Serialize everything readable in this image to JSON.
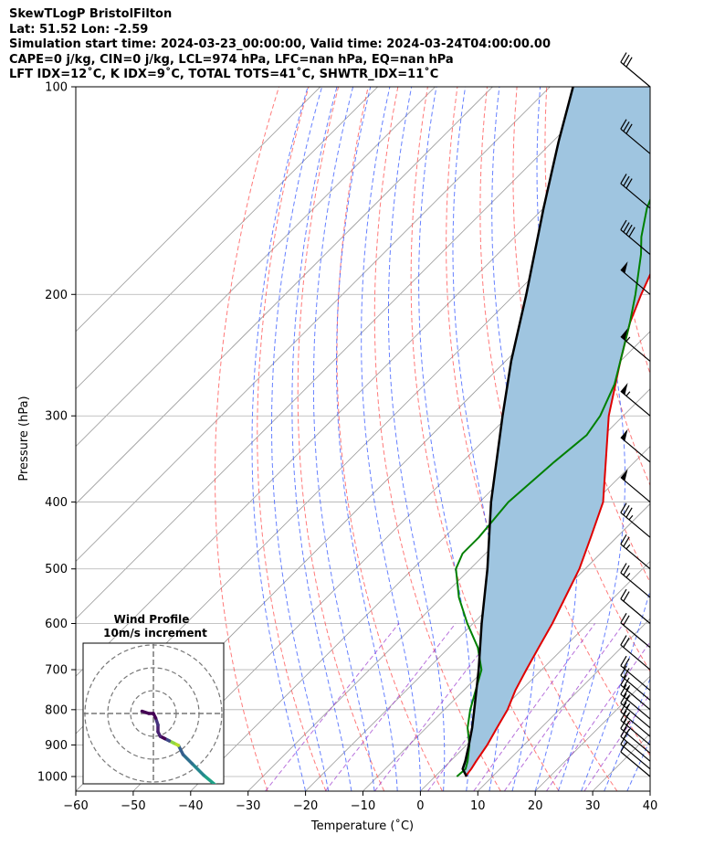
{
  "header": {
    "line1": "SkewTLogP BristolFilton",
    "line2": "Lat: 51.52   Lon: -2.59",
    "line3": "Simulation start time: 2024-03-23_00:00:00, Valid time: 2024-03-24T04:00:00.00",
    "line4": "CAPE=0 j/kg, CIN=0 j/kg, LCL=974 hPa, LFC=nan hPa, EQ=nan hPa",
    "line5": "LFT IDX=12˚C, K IDX=9˚C, TOTAL TOTS=41˚C, SHWTR_IDX=11˚C"
  },
  "colors": {
    "temperature": "#e00000",
    "dewpoint": "#008000",
    "parcel": "#000000",
    "cape_fill": "#9fc5e0",
    "dry_adiabats": "#ff4d4d",
    "moist_adiabats": "#3355ff",
    "mixing_ratio": "#9933cc",
    "isotherms": "#999999",
    "grid": "#b0b0b0"
  },
  "chart_data": {
    "type": "skewT-logP",
    "xlabel": "Temperature (˚C)",
    "ylabel": "Pressure (hPa)",
    "xlim": [
      -60,
      40
    ],
    "ylim": [
      1050,
      100
    ],
    "y_scale": "log",
    "grid": true,
    "x_ticks": [
      "−60",
      "−50",
      "−40",
      "−30",
      "−20",
      "−10",
      "0",
      "10",
      "20",
      "30",
      "40"
    ],
    "y_ticks": [
      "1000",
      "900",
      "800",
      "700",
      "600",
      "500",
      "400",
      "300",
      "200",
      "100"
    ],
    "series": [
      {
        "key": "temperature",
        "points": [
          [
            1000,
            5.3
          ],
          [
            975,
            5
          ],
          [
            950,
            4.5
          ],
          [
            900,
            3.6
          ],
          [
            850,
            2.3
          ],
          [
            800,
            1
          ],
          [
            750,
            -1
          ],
          [
            700,
            -2.7
          ],
          [
            650,
            -4.4
          ],
          [
            600,
            -6.2
          ],
          [
            550,
            -8.5
          ],
          [
            500,
            -11
          ],
          [
            450,
            -14.5
          ],
          [
            400,
            -18.5
          ],
          [
            350,
            -25
          ],
          [
            300,
            -32.5
          ],
          [
            250,
            -40
          ],
          [
            220,
            -45
          ],
          [
            200,
            -48
          ],
          [
            180,
            -51
          ],
          [
            150,
            -55
          ],
          [
            120,
            -59
          ],
          [
            100,
            -62.5
          ]
        ]
      },
      {
        "key": "dewpoint",
        "points": [
          [
            1000,
            3.8
          ],
          [
            975,
            4
          ],
          [
            950,
            3
          ],
          [
            900,
            0.5
          ],
          [
            850,
            -2.8
          ],
          [
            800,
            -5.5
          ],
          [
            700,
            -10.5
          ],
          [
            650,
            -15
          ],
          [
            600,
            -21
          ],
          [
            550,
            -27
          ],
          [
            500,
            -32.5
          ],
          [
            475,
            -34
          ],
          [
            450,
            -34
          ],
          [
            400,
            -35
          ],
          [
            350,
            -34
          ],
          [
            320,
            -33
          ],
          [
            300,
            -34
          ],
          [
            270,
            -37
          ],
          [
            250,
            -40
          ],
          [
            220,
            -45
          ],
          [
            200,
            -49
          ],
          [
            175,
            -55
          ],
          [
            165,
            -58
          ],
          [
            150,
            -62
          ],
          [
            120,
            -69
          ],
          [
            100,
            -74
          ]
        ]
      },
      {
        "key": "parcel",
        "points": [
          [
            1000,
            5.5
          ],
          [
            975,
            3.5
          ],
          [
            950,
            2.6
          ],
          [
            900,
            0.4
          ],
          [
            850,
            -2
          ],
          [
            800,
            -4.8
          ],
          [
            700,
            -11
          ],
          [
            600,
            -18.5
          ],
          [
            500,
            -27
          ],
          [
            400,
            -38
          ],
          [
            300,
            -51
          ],
          [
            250,
            -59
          ],
          [
            200,
            -68
          ],
          [
            150,
            -80
          ],
          [
            120,
            -89
          ],
          [
            100,
            -96
          ]
        ]
      }
    ],
    "wind_barbs": {
      "pressures_hpa": [
        1000,
        975,
        950,
        925,
        900,
        875,
        850,
        825,
        800,
        775,
        750,
        700,
        650,
        600,
        550,
        500,
        450,
        400,
        350,
        300,
        250,
        200,
        175,
        150,
        125,
        100
      ],
      "speeds_kt": [
        10,
        15,
        20,
        25,
        25,
        25,
        25,
        25,
        25,
        20,
        20,
        20,
        20,
        20,
        25,
        25,
        35,
        50,
        50,
        55,
        55,
        50,
        40,
        30,
        30,
        30
      ]
    },
    "hodograph": {
      "title": "Wind Profile",
      "subtitle": "10m/s increment",
      "rings_ms": [
        10,
        20,
        30
      ]
    }
  }
}
